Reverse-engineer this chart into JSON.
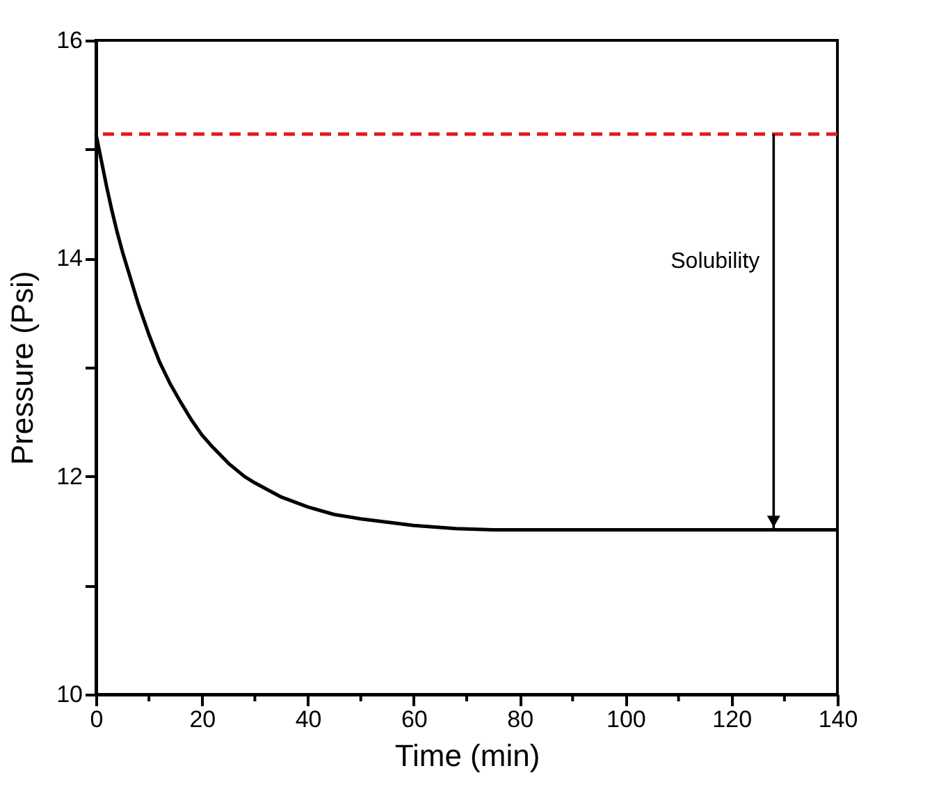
{
  "chart_data": {
    "type": "line",
    "xlabel": "Time (min)",
    "ylabel": "Pressure (Psi)",
    "xlim": [
      0,
      140
    ],
    "ylim": [
      10,
      16
    ],
    "xticks": [
      0,
      {
        "value": 10,
        "label": null
      },
      20,
      {
        "value": 30,
        "label": null
      },
      40,
      {
        "value": 50,
        "label": null
      },
      60,
      {
        "value": 70,
        "label": null
      },
      80,
      {
        "value": 90,
        "label": null
      },
      100,
      {
        "value": 110,
        "label": null
      },
      120,
      {
        "value": 130,
        "label": null
      },
      140
    ],
    "yticks": [
      10,
      {
        "value": 11,
        "label": null
      },
      12,
      {
        "value": 13,
        "label": null
      },
      14,
      {
        "value": 15,
        "label": null
      },
      16
    ],
    "grid": false,
    "marker": "none",
    "line_style": "solid",
    "series": [
      {
        "color": "#000000",
        "x": [
          0,
          1,
          2,
          3,
          4,
          5,
          6,
          8,
          10,
          12,
          14,
          16,
          18,
          20,
          22,
          25,
          28,
          30,
          35,
          40,
          45,
          50,
          55,
          60,
          68,
          75,
          90,
          100,
          115,
          140
        ],
        "values": [
          15.14,
          14.9,
          14.66,
          14.44,
          14.24,
          14.06,
          13.9,
          13.58,
          13.3,
          13.05,
          12.85,
          12.68,
          12.52,
          12.38,
          12.27,
          12.12,
          12.0,
          11.94,
          11.81,
          11.72,
          11.65,
          11.61,
          11.58,
          11.55,
          11.52,
          11.51,
          11.51,
          11.51,
          11.51,
          11.51
        ]
      }
    ],
    "ref_lines": [
      {
        "axis": "y",
        "value": 15.14,
        "color": "#e31a1c",
        "line_style": "dashed"
      }
    ],
    "annotations": [
      "Solubility"
    ]
  }
}
